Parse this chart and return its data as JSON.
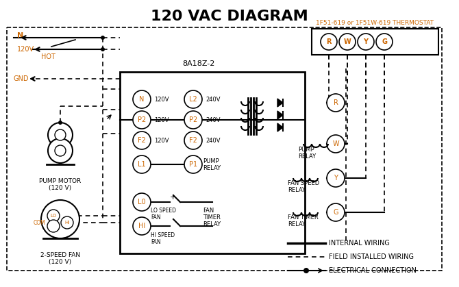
{
  "title": "120 VAC DIAGRAM",
  "title_fontsize": 16,
  "title_bold": true,
  "bg_color": "#ffffff",
  "text_color": "#000000",
  "orange_color": "#cc6600",
  "thermostat_label": "1F51-619 or 1F51W-619 THERMOSTAT",
  "control_box_label": "8A18Z-2",
  "pump_motor_label": "PUMP MOTOR\n(120 V)",
  "fan_label": "2-SPEED FAN\n(120 V)",
  "legend_internal": "INTERNAL WIRING",
  "legend_field": "FIELD INSTALLED WIRING",
  "legend_elec": "ELECTRICAL CONNECTION"
}
